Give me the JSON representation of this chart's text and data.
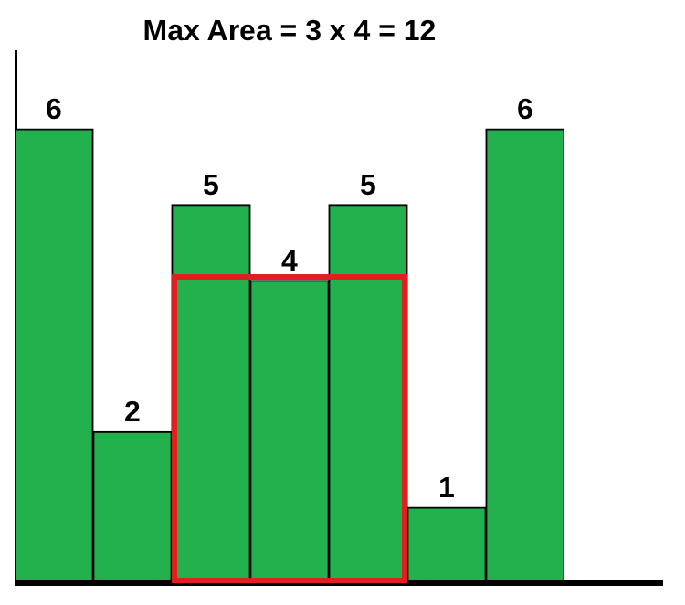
{
  "chart_data": {
    "type": "bar",
    "title": "Max Area = 3 x 4 = 12",
    "categories": [
      null,
      null,
      null,
      null,
      null,
      null,
      null
    ],
    "values": [
      6,
      2,
      5,
      4,
      5,
      1,
      6
    ],
    "color": "#22b14c",
    "data_labels": true,
    "grid": false,
    "legend": false
  }
}
